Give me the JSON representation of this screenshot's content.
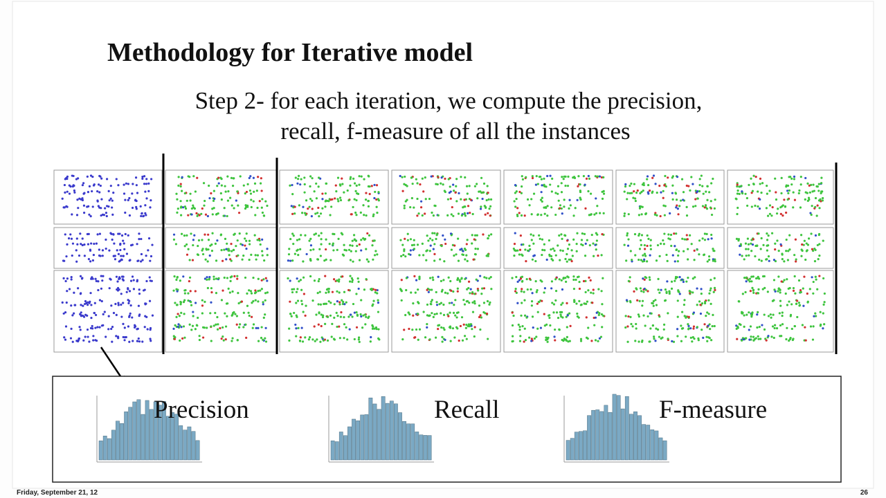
{
  "slide": {
    "title": "Methodology for Iterative model",
    "step_lines": [
      "Step 2- for each iteration, we compute the precision,",
      "recall, f-measure of all the instances"
    ],
    "metrics": [
      "Precision",
      "Recall",
      "F-measure"
    ],
    "footer": {
      "date": "Friday, September 21, 12",
      "page": "26"
    }
  }
}
